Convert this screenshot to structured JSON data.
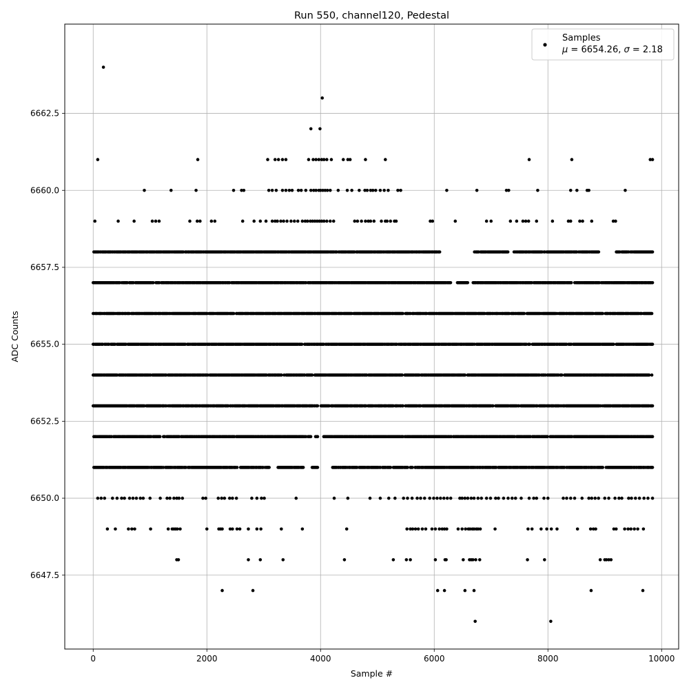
{
  "chart_data": {
    "type": "scatter",
    "title": "Run 550, channel120, Pedestal",
    "xlabel": "Sample #",
    "ylabel": "ADC Counts",
    "xlim": [
      -500,
      10300
    ],
    "ylim": [
      6645.1,
      6665.4
    ],
    "xticks": [
      0,
      2000,
      4000,
      6000,
      8000,
      10000
    ],
    "yticks": [
      6647.5,
      6650.0,
      6652.5,
      6655.0,
      6657.5,
      6660.0,
      6662.5
    ],
    "grid": true,
    "legend": {
      "placement": "top-right",
      "entry": "Samples",
      "stats_mu_label": "μ",
      "stats_mu_value": "6654.26",
      "stats_sigma_label": "σ",
      "stats_sigma_value": "2.18"
    },
    "marker_color": "#000000",
    "sample_range": [
      0,
      9840
    ],
    "levels": [
      {
        "y": 6646,
        "x": [
          6720,
          8050
        ]
      },
      {
        "y": 6647,
        "x": [
          2270,
          2810,
          6060,
          6180,
          6540,
          6700,
          8760,
          9670
        ]
      },
      {
        "y": 6648,
        "x": [
          1470,
          1500,
          2730,
          2940,
          3340,
          4420,
          5280,
          5510,
          5580,
          6020,
          6190,
          6210,
          6510,
          6620,
          6650,
          6680,
          6730,
          6800,
          7640,
          7940,
          8920,
          9000,
          9030,
          9070,
          9110
        ]
      },
      {
        "y": 6649,
        "x": [
          250,
          390,
          620,
          680,
          730,
          1010,
          1320,
          1390,
          1420,
          1450,
          1480,
          1530,
          2000,
          2210,
          2240,
          2270,
          2410,
          2450,
          2530,
          2580,
          2730,
          2880,
          2950,
          3310,
          3680,
          4460,
          5520,
          5580,
          5620,
          5670,
          5720,
          5790,
          5850,
          5960,
          6020,
          6090,
          6140,
          6180,
          6220,
          6420,
          6490,
          6550,
          6600,
          6630,
          6670,
          6700,
          6740,
          6770,
          6810,
          7070,
          7650,
          7720,
          7880,
          7980,
          8060,
          8160,
          8520,
          8750,
          8800,
          8840,
          9160,
          9200,
          9350,
          9410,
          9460,
          9520,
          9580,
          9680
        ]
      },
      {
        "y": 6650,
        "x": [
          80,
          140,
          200,
          340,
          420,
          500,
          550,
          640,
          700,
          760,
          830,
          880,
          1000,
          1180,
          1300,
          1350,
          1420,
          1470,
          1510,
          1570,
          1930,
          1980,
          2200,
          2260,
          2310,
          2400,
          2450,
          2520,
          2790,
          2880,
          2960,
          3010,
          3570,
          4240,
          4480,
          4870,
          5050,
          5200,
          5310,
          5460,
          5530,
          5610,
          5700,
          5760,
          5830,
          5920,
          5990,
          6050,
          6110,
          6170,
          6230,
          6290,
          6450,
          6490,
          6540,
          6590,
          6650,
          6700,
          6770,
          6830,
          6920,
          6990,
          7080,
          7130,
          7220,
          7300,
          7370,
          7430,
          7530,
          7670,
          7750,
          7800,
          7930,
          8000,
          8270,
          8330,
          8400,
          8470,
          8600,
          8720,
          8770,
          8830,
          8890,
          9000,
          9070,
          9180,
          9250,
          9300,
          9420,
          9470,
          9540,
          9610,
          9690,
          9760,
          9840
        ]
      },
      {
        "y": 6651,
        "x": [
          0,
          2000,
          4000,
          6000,
          8000,
          9840
        ],
        "dense": true,
        "gaps": [
          [
            3100,
            3250
          ],
          [
            3700,
            3850
          ],
          [
            3950,
            4200
          ]
        ]
      },
      {
        "y": 6652,
        "x": [
          0,
          2000,
          4000,
          6000,
          8000,
          9840
        ],
        "dense": true,
        "gaps": [
          [
            3850,
            3900
          ],
          [
            3950,
            4050
          ]
        ]
      },
      {
        "y": 6653,
        "x": [
          0,
          2000,
          4000,
          6000,
          8000,
          9840
        ],
        "dense": true,
        "gaps": [
          [
            3950,
            4000
          ]
        ]
      },
      {
        "y": 6654,
        "x": [
          0,
          2000,
          4000,
          6000,
          8000,
          9840
        ],
        "dense": true
      },
      {
        "y": 6655,
        "x": [
          0,
          2000,
          4000,
          6000,
          8000,
          9840
        ],
        "dense": true
      },
      {
        "y": 6656,
        "x": [
          0,
          2000,
          4000,
          6000,
          8000,
          9840
        ],
        "dense": true
      },
      {
        "y": 6657,
        "x": [
          0,
          2000,
          4000,
          6000,
          8000,
          9840
        ],
        "dense": true,
        "gaps": [
          [
            6300,
            6400
          ],
          [
            6600,
            6680
          ]
        ]
      },
      {
        "y": 6658,
        "x": [
          0,
          2000,
          4000,
          6000,
          8000,
          9840
        ],
        "dense": true,
        "gaps": [
          [
            6100,
            6700
          ],
          [
            7300,
            7400
          ],
          [
            8900,
            9200
          ]
        ]
      },
      {
        "y": 6659,
        "x": [
          30,
          440,
          720,
          1040,
          1100,
          1160,
          1700,
          1830,
          1880,
          2080,
          2140,
          2630,
          2830,
          2940,
          3040,
          3150,
          3200,
          3240,
          3300,
          3350,
          3410,
          3480,
          3540,
          3600,
          3680,
          3730,
          3770,
          3820,
          3860,
          3900,
          3940,
          3980,
          4020,
          4060,
          4110,
          4170,
          4230,
          4600,
          4650,
          4720,
          4790,
          4840,
          4880,
          4940,
          5070,
          5140,
          5170,
          5230,
          5300,
          5330,
          5930,
          5970,
          6370,
          6920,
          7000,
          7340,
          7450,
          7560,
          7610,
          7660,
          7800,
          8080,
          8360,
          8400,
          8560,
          8610,
          8770,
          9150,
          9190
        ]
      },
      {
        "y": 6660,
        "x": [
          900,
          1370,
          1810,
          2470,
          2610,
          2650,
          3090,
          3150,
          3220,
          3330,
          3390,
          3450,
          3500,
          3610,
          3660,
          3740,
          3830,
          3880,
          3920,
          3970,
          4000,
          4040,
          4080,
          4120,
          4170,
          4310,
          4470,
          4550,
          4680,
          4780,
          4820,
          4880,
          4920,
          4970,
          5050,
          5120,
          5190,
          5360,
          5410,
          6220,
          6750,
          7270,
          7310,
          7820,
          8400,
          8510,
          8690,
          8720,
          9360
        ]
      },
      {
        "y": 6661,
        "x": [
          80,
          1840,
          3070,
          3200,
          3260,
          3330,
          3390,
          3790,
          3870,
          3920,
          3970,
          4020,
          4060,
          4110,
          4190,
          4400,
          4480,
          4520,
          4790,
          5140,
          7670,
          8420,
          9800,
          9840
        ]
      },
      {
        "y": 6662,
        "x": [
          3830,
          3990
        ]
      },
      {
        "y": 6663,
        "x": [
          4030
        ]
      },
      {
        "y": 6664,
        "x": [
          180
        ]
      }
    ]
  }
}
